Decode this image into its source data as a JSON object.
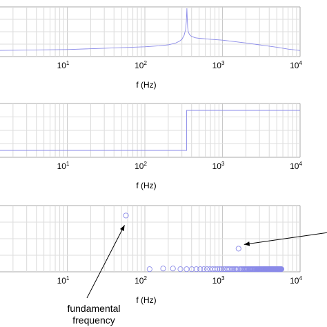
{
  "chart_data": [
    {
      "type": "line",
      "xscale": "log",
      "xlim": [
        1,
        10000
      ],
      "xlabel": "f (Hz)",
      "xticks": [
        {
          "base": "10",
          "exp": "1"
        },
        {
          "base": "10",
          "exp": "2"
        },
        {
          "base": "10",
          "exp": "3"
        },
        {
          "base": "10",
          "exp": "4"
        }
      ],
      "grid": true,
      "series": [
        {
          "color": "#8a8ae8",
          "x": [
            1,
            10,
            50,
            100,
            150,
            200,
            250,
            280,
            300,
            320,
            335,
            342,
            348,
            352,
            356,
            362,
            375,
            400,
            450,
            500,
            700,
            1000,
            2000,
            3000,
            5000,
            7000,
            10000
          ],
          "y": [
            0.1,
            0.12,
            0.16,
            0.18,
            0.2,
            0.22,
            0.26,
            0.3,
            0.34,
            0.42,
            0.55,
            0.72,
            1.0,
            0.76,
            0.6,
            0.5,
            0.44,
            0.4,
            0.37,
            0.36,
            0.34,
            0.32,
            0.26,
            0.22,
            0.17,
            0.13,
            0.1
          ]
        }
      ]
    },
    {
      "type": "line",
      "xscale": "log",
      "xlim": [
        1,
        10000
      ],
      "xlabel": "f (Hz)",
      "xticks": [
        {
          "base": "10",
          "exp": "1"
        },
        {
          "base": "10",
          "exp": "2"
        },
        {
          "base": "10",
          "exp": "3"
        },
        {
          "base": "10",
          "exp": "4"
        }
      ],
      "grid": true,
      "series": [
        {
          "color": "#8a8ae8",
          "x": [
            1,
            345,
            345,
            10000
          ],
          "y": [
            0,
            0,
            1,
            1
          ]
        }
      ]
    },
    {
      "type": "scatter",
      "xscale": "log",
      "xlim": [
        1,
        10000
      ],
      "xlabel": "f (Hz)",
      "xticks": [
        {
          "base": "10",
          "exp": "1"
        },
        {
          "base": "10",
          "exp": "2"
        },
        {
          "base": "10",
          "exp": "3"
        },
        {
          "base": "10",
          "exp": "4"
        }
      ],
      "grid": true,
      "series": [
        {
          "color": "#8a8ae8",
          "x": [
            57,
            115,
            172,
            230,
            287,
            345,
            402,
            460,
            517,
            575,
            632,
            690,
            747,
            805,
            862,
            920,
            977,
            1035,
            1092,
            1150,
            1207,
            1265,
            1322,
            1380,
            1437,
            1495,
            1552,
            1610,
            1667,
            1725,
            1782,
            1840,
            1897,
            1955,
            2012,
            2070,
            2127,
            2185,
            2242,
            2300,
            2357,
            2415,
            2472,
            2530,
            2587,
            2645,
            2702,
            2760,
            2817,
            2875,
            2932,
            2990,
            3047,
            3105,
            3162,
            3220,
            3277,
            3335,
            3392,
            3450,
            3507,
            3565,
            3622,
            3680,
            3737,
            3795,
            3852,
            3910,
            3967,
            4025,
            4082,
            4140,
            4197,
            4255,
            4312,
            4370,
            4427,
            4485,
            4542,
            4600,
            4657,
            4715,
            4772,
            4830,
            4887,
            4945,
            5002,
            5060,
            5117,
            5175,
            5232,
            5290,
            5347,
            5405,
            5462,
            5520,
            5577,
            5635,
            5692,
            5750
          ],
          "y": [
            0.85,
            0.04,
            0.05,
            0.05,
            0.04,
            0.04,
            0.04,
            0.04,
            0.04,
            0.04,
            0.04,
            0.04,
            0.04,
            0.04,
            0.04,
            0.04,
            0.04,
            0.04,
            0.04,
            0.04,
            0.04,
            0.04,
            0.04,
            0.04,
            0.04,
            0.04,
            0.04,
            0.35,
            0.04,
            0.04,
            0.04,
            0.04,
            0.04,
            0.04,
            0.04,
            0.04,
            0.04,
            0.04,
            0.04,
            0.04,
            0.04,
            0.04,
            0.04,
            0.04,
            0.04,
            0.04,
            0.04,
            0.04,
            0.04,
            0.04,
            0.04,
            0.04,
            0.04,
            0.04,
            0.04,
            0.04,
            0.04,
            0.04,
            0.04,
            0.04,
            0.04,
            0.04,
            0.04,
            0.04,
            0.04,
            0.04,
            0.04,
            0.04,
            0.04,
            0.04,
            0.04,
            0.04,
            0.04,
            0.04,
            0.04,
            0.04,
            0.04,
            0.04,
            0.04,
            0.04,
            0.04,
            0.04,
            0.04,
            0.04,
            0.04,
            0.04,
            0.04,
            0.04,
            0.04,
            0.04,
            0.04,
            0.04,
            0.04,
            0.04,
            0.04,
            0.04,
            0.04,
            0.04,
            0.04,
            0.04
          ]
        }
      ],
      "annotations": [
        {
          "lines": [
            "fundamental",
            "frequency"
          ],
          "points_to": {
            "x": 57,
            "y": 0.85
          }
        }
      ]
    }
  ]
}
